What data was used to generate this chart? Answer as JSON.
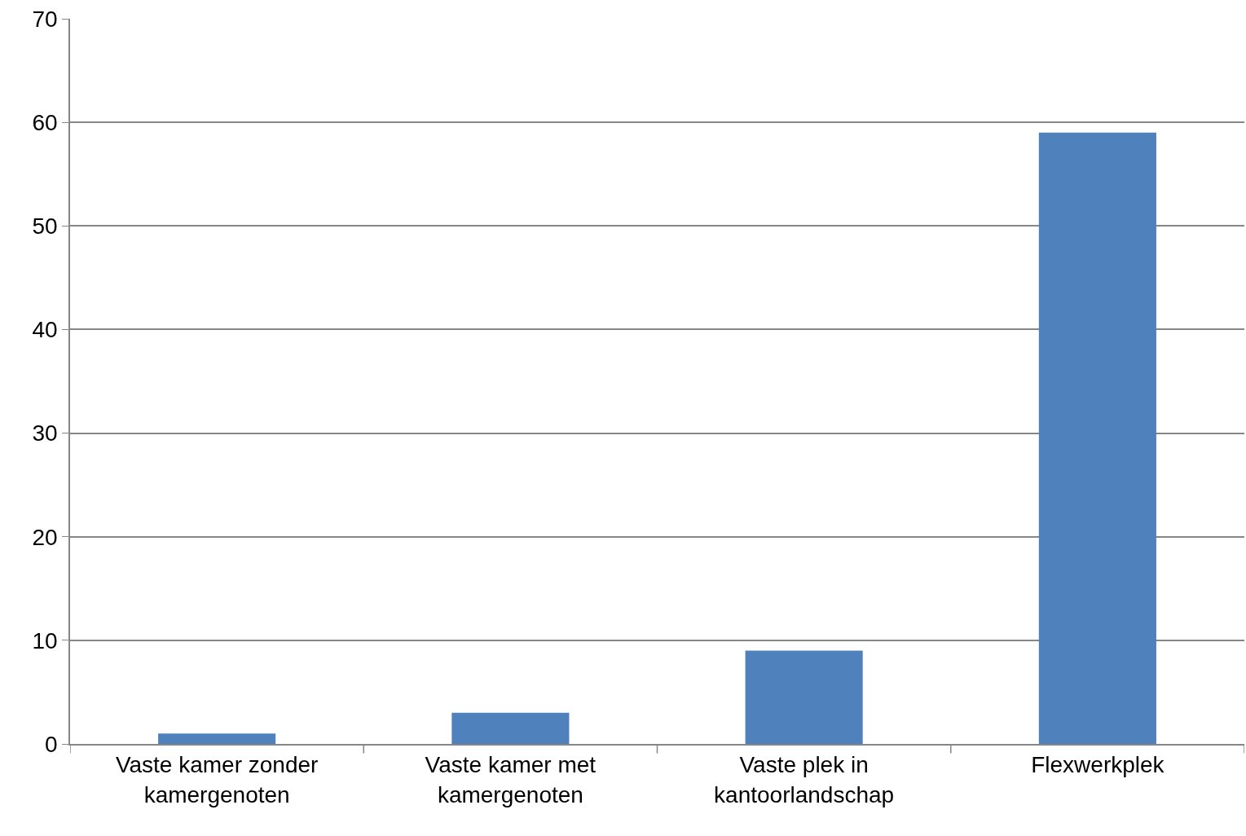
{
  "chart_data": {
    "type": "bar",
    "categories": [
      "Vaste kamer zonder kamergenoten",
      "Vaste kamer met kamergenoten",
      "Vaste plek in kantoorlandschap",
      "Flexwerkplek"
    ],
    "values": [
      1,
      3,
      9,
      59
    ],
    "color": "#4f81bd",
    "ylim": [
      0,
      70
    ],
    "yticks": [
      0,
      10,
      20,
      30,
      40,
      50,
      60,
      70
    ],
    "grid": "y"
  }
}
